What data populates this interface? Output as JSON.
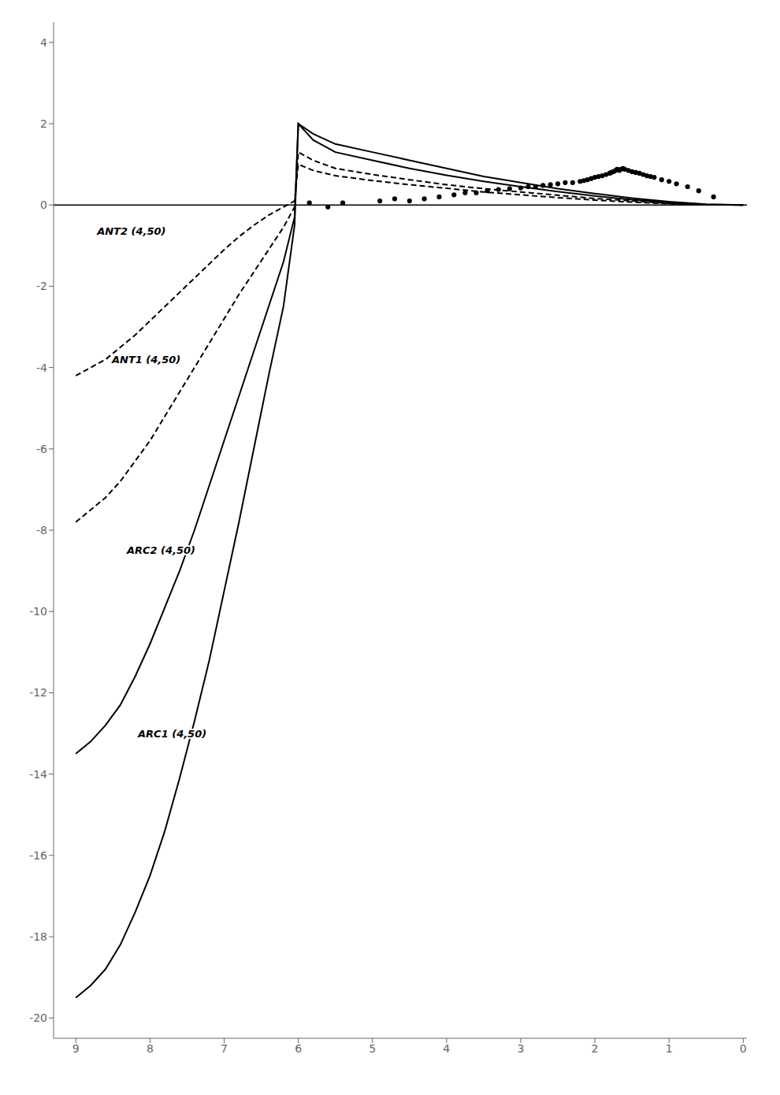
{
  "chart_data": {
    "type": "line",
    "xlim": [
      9.3,
      -0.05
    ],
    "ylim": [
      -20.5,
      4.5
    ],
    "xticks": [
      9,
      8,
      7,
      6,
      5,
      4,
      3,
      2,
      1,
      0
    ],
    "yticks": [
      4,
      2,
      0,
      -2,
      -4,
      -6,
      -8,
      -10,
      -12,
      -14,
      -16,
      -18,
      -20
    ],
    "grid": false,
    "hlines": [
      0
    ],
    "series": [
      {
        "type": "line",
        "color": "#000000",
        "line_style": "solid",
        "x": [
          9.0,
          8.8,
          8.6,
          8.4,
          8.2,
          8.0,
          7.8,
          7.6,
          7.4,
          7.2,
          7.0,
          6.8,
          6.6,
          6.4,
          6.2,
          6.05,
          6.0,
          5.8,
          5.5,
          5.0,
          4.5,
          4.0,
          3.5,
          3.0,
          2.5,
          2.0,
          1.5,
          1.0,
          0.5,
          0.0
        ],
        "values": [
          -19.5,
          -19.2,
          -18.8,
          -18.2,
          -17.4,
          -16.5,
          -15.4,
          -14.1,
          -12.7,
          -11.2,
          -9.5,
          -7.8,
          -6.0,
          -4.2,
          -2.5,
          -0.5,
          2.0,
          1.75,
          1.5,
          1.3,
          1.1,
          0.9,
          0.7,
          0.55,
          0.4,
          0.28,
          0.17,
          0.08,
          0.02,
          0.0
        ]
      },
      {
        "type": "line",
        "color": "#000000",
        "line_style": "solid",
        "x": [
          9.0,
          8.8,
          8.6,
          8.4,
          8.2,
          8.0,
          7.8,
          7.6,
          7.4,
          7.2,
          7.0,
          6.8,
          6.6,
          6.4,
          6.2,
          6.05,
          6.0,
          5.8,
          5.5,
          5.0,
          4.5,
          4.0,
          3.5,
          3.0,
          2.5,
          2.0,
          1.5,
          1.0,
          0.5,
          0.0
        ],
        "values": [
          -13.5,
          -13.2,
          -12.8,
          -12.3,
          -11.6,
          -10.8,
          -9.9,
          -9.0,
          -8.0,
          -6.9,
          -5.8,
          -4.7,
          -3.6,
          -2.5,
          -1.4,
          -0.3,
          2.0,
          1.6,
          1.3,
          1.1,
          0.9,
          0.73,
          0.58,
          0.45,
          0.33,
          0.22,
          0.13,
          0.06,
          0.01,
          0.0
        ]
      },
      {
        "type": "line",
        "color": "#000000",
        "line_style": "dashed",
        "x": [
          9.0,
          8.8,
          8.6,
          8.4,
          8.2,
          8.0,
          7.8,
          7.6,
          7.4,
          7.2,
          7.0,
          6.8,
          6.6,
          6.4,
          6.2,
          6.05,
          6.0,
          5.8,
          5.5,
          5.0,
          4.5,
          4.0,
          3.5,
          3.0,
          2.5,
          2.0,
          1.5,
          1.0,
          0.5,
          0.0
        ],
        "values": [
          -7.8,
          -7.5,
          -7.2,
          -6.8,
          -6.3,
          -5.8,
          -5.2,
          -4.6,
          -4.0,
          -3.4,
          -2.8,
          -2.2,
          -1.65,
          -1.1,
          -0.55,
          -0.05,
          1.3,
          1.1,
          0.9,
          0.75,
          0.62,
          0.5,
          0.4,
          0.32,
          0.24,
          0.16,
          0.1,
          0.04,
          0.01,
          0.0
        ]
      },
      {
        "type": "line",
        "color": "#000000",
        "line_style": "dashed",
        "x": [
          9.0,
          8.8,
          8.6,
          8.4,
          8.2,
          8.0,
          7.8,
          7.6,
          7.4,
          7.2,
          7.0,
          6.8,
          6.6,
          6.4,
          6.2,
          6.05,
          6.0,
          5.8,
          5.5,
          5.0,
          4.5,
          4.0,
          3.5,
          3.0,
          2.5,
          2.0,
          1.5,
          1.0,
          0.5,
          0.0
        ],
        "values": [
          -4.2,
          -4.0,
          -3.8,
          -3.5,
          -3.2,
          -2.85,
          -2.5,
          -2.15,
          -1.8,
          -1.45,
          -1.1,
          -0.78,
          -0.5,
          -0.25,
          -0.05,
          0.1,
          1.0,
          0.85,
          0.72,
          0.6,
          0.5,
          0.41,
          0.32,
          0.25,
          0.18,
          0.12,
          0.07,
          0.03,
          0.005,
          0.0
        ]
      },
      {
        "type": "scatter",
        "color": "#000000",
        "marker": "circle",
        "x": [
          5.85,
          5.6,
          5.4,
          4.9,
          4.7,
          4.5,
          4.3,
          4.1,
          3.9,
          3.75,
          3.6,
          3.45,
          3.3,
          3.15,
          3.0,
          2.9,
          2.8,
          2.7,
          2.6,
          2.5,
          2.4,
          2.3,
          2.2,
          2.15,
          2.1,
          2.05,
          2.0,
          1.95,
          1.9,
          1.85,
          1.8,
          1.78,
          1.75,
          1.72,
          1.7,
          1.67,
          1.65,
          1.62,
          1.6,
          1.55,
          1.5,
          1.45,
          1.4,
          1.35,
          1.3,
          1.25,
          1.2,
          1.1,
          1.0,
          0.9,
          0.75,
          0.6,
          0.4
        ],
        "values": [
          0.05,
          -0.05,
          0.05,
          0.1,
          0.15,
          0.1,
          0.15,
          0.2,
          0.25,
          0.3,
          0.3,
          0.35,
          0.38,
          0.4,
          0.42,
          0.45,
          0.45,
          0.48,
          0.5,
          0.52,
          0.55,
          0.55,
          0.58,
          0.6,
          0.62,
          0.65,
          0.68,
          0.7,
          0.72,
          0.75,
          0.78,
          0.8,
          0.82,
          0.85,
          0.88,
          0.85,
          0.88,
          0.9,
          0.88,
          0.85,
          0.82,
          0.8,
          0.78,
          0.75,
          0.72,
          0.7,
          0.68,
          0.62,
          0.58,
          0.52,
          0.45,
          0.35,
          0.2
        ]
      }
    ],
    "annotations": [
      {
        "text": "ANT2 (4,50)",
        "x": 8.25,
        "y": -0.65
      },
      {
        "text": "ANT1 (4,50)",
        "x": 8.05,
        "y": -3.8
      },
      {
        "text": "ARC2 (4,50)",
        "x": 7.85,
        "y": -8.5
      },
      {
        "text": "ARC1 (4,50)",
        "x": 7.7,
        "y": -13.0
      }
    ]
  }
}
